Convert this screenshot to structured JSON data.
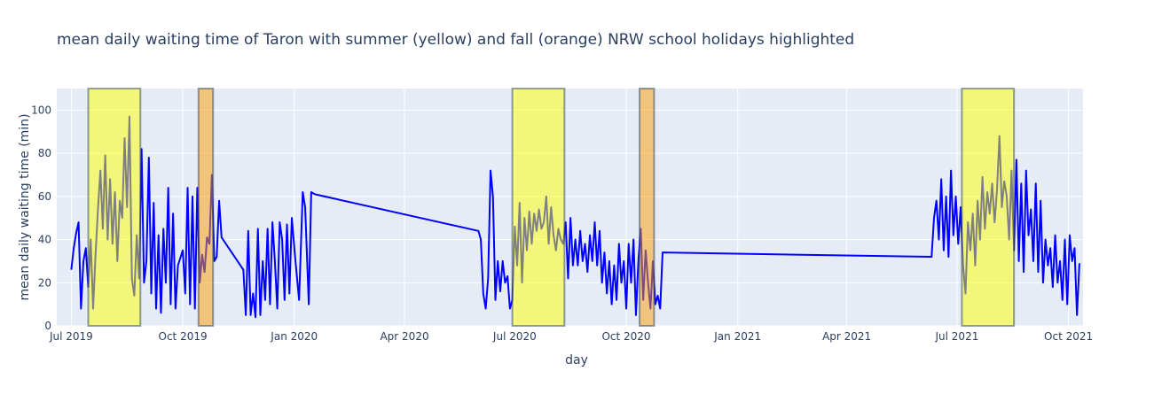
{
  "chart_data": {
    "type": "line",
    "title": "mean daily waiting time of Taron with summer (yellow) and fall (orange) NRW school holidays highlighted",
    "x_label": "day",
    "y_label": "mean daily waiting time (min)",
    "xlim": [
      "2019-06-19",
      "2021-10-13"
    ],
    "ylim": [
      0,
      110
    ],
    "xticks": [
      {
        "value": "2019-07-01",
        "label": "Jul 2019"
      },
      {
        "value": "2019-10-01",
        "label": "Oct 2019"
      },
      {
        "value": "2020-01-01",
        "label": "Jan 2020"
      },
      {
        "value": "2020-04-01",
        "label": "Apr 2020"
      },
      {
        "value": "2020-07-01",
        "label": "Jul 2020"
      },
      {
        "value": "2020-10-01",
        "label": "Oct 2020"
      },
      {
        "value": "2021-01-01",
        "label": "Jan 2021"
      },
      {
        "value": "2021-04-01",
        "label": "Apr 2021"
      },
      {
        "value": "2021-07-01",
        "label": "Jul 2021"
      },
      {
        "value": "2021-10-01",
        "label": "Oct 2021"
      }
    ],
    "yticks": [
      0,
      20,
      40,
      60,
      80,
      100
    ],
    "grid": true,
    "highlights": [
      {
        "x0": "2019-07-15",
        "x1": "2019-08-27",
        "color": "#ffff00"
      },
      {
        "x0": "2019-10-14",
        "x1": "2019-10-26",
        "color": "#ff9900"
      },
      {
        "x0": "2020-06-29",
        "x1": "2020-08-11",
        "color": "#ffff00"
      },
      {
        "x0": "2020-10-12",
        "x1": "2020-10-24",
        "color": "#ff9900"
      },
      {
        "x0": "2021-07-05",
        "x1": "2021-08-17",
        "color": "#ffff00"
      }
    ],
    "x": [
      "2019-07-01",
      "2019-07-03",
      "2019-07-05",
      "2019-07-07",
      "2019-07-09",
      "2019-07-11",
      "2019-07-13",
      "2019-07-15",
      "2019-07-17",
      "2019-07-19",
      "2019-07-21",
      "2019-07-23",
      "2019-07-25",
      "2019-07-27",
      "2019-07-29",
      "2019-07-31",
      "2019-08-02",
      "2019-08-04",
      "2019-08-06",
      "2019-08-08",
      "2019-08-10",
      "2019-08-12",
      "2019-08-14",
      "2019-08-16",
      "2019-08-18",
      "2019-08-20",
      "2019-08-22",
      "2019-08-24",
      "2019-08-26",
      "2019-08-28",
      "2019-08-30",
      "2019-09-01",
      "2019-09-03",
      "2019-09-05",
      "2019-09-07",
      "2019-09-09",
      "2019-09-11",
      "2019-09-13",
      "2019-09-15",
      "2019-09-17",
      "2019-09-19",
      "2019-09-21",
      "2019-09-23",
      "2019-09-25",
      "2019-09-27",
      "2019-10-01",
      "2019-10-03",
      "2019-10-05",
      "2019-10-07",
      "2019-10-09",
      "2019-10-11",
      "2019-10-13",
      "2019-10-15",
      "2019-10-17",
      "2019-10-19",
      "2019-10-21",
      "2019-10-23",
      "2019-10-25",
      "2019-10-27",
      "2019-10-29",
      "2019-10-31",
      "2019-11-02",
      "2019-11-20",
      "2019-11-22",
      "2019-11-24",
      "2019-11-26",
      "2019-11-28",
      "2019-11-30",
      "2019-12-02",
      "2019-12-04",
      "2019-12-06",
      "2019-12-08",
      "2019-12-10",
      "2019-12-12",
      "2019-12-14",
      "2019-12-16",
      "2019-12-18",
      "2019-12-20",
      "2019-12-22",
      "2019-12-24",
      "2019-12-26",
      "2019-12-28",
      "2019-12-30",
      "2020-01-02",
      "2020-01-05",
      "2020-01-08",
      "2020-01-10",
      "2020-01-13",
      "2020-01-15",
      "2020-01-18",
      "2020-06-01",
      "2020-06-03",
      "2020-06-05",
      "2020-06-07",
      "2020-06-09",
      "2020-06-11",
      "2020-06-13",
      "2020-06-15",
      "2020-06-17",
      "2020-06-19",
      "2020-06-21",
      "2020-06-23",
      "2020-06-25",
      "2020-06-27",
      "2020-06-29",
      "2020-07-01",
      "2020-07-03",
      "2020-07-05",
      "2020-07-07",
      "2020-07-09",
      "2020-07-11",
      "2020-07-13",
      "2020-07-15",
      "2020-07-17",
      "2020-07-19",
      "2020-07-21",
      "2020-07-23",
      "2020-07-25",
      "2020-07-27",
      "2020-07-29",
      "2020-07-31",
      "2020-08-02",
      "2020-08-04",
      "2020-08-06",
      "2020-08-08",
      "2020-08-10",
      "2020-08-12",
      "2020-08-14",
      "2020-08-16",
      "2020-08-18",
      "2020-08-20",
      "2020-08-22",
      "2020-08-24",
      "2020-08-26",
      "2020-08-28",
      "2020-08-30",
      "2020-09-01",
      "2020-09-03",
      "2020-09-05",
      "2020-09-07",
      "2020-09-09",
      "2020-09-11",
      "2020-09-13",
      "2020-09-15",
      "2020-09-17",
      "2020-09-19",
      "2020-09-21",
      "2020-09-23",
      "2020-09-25",
      "2020-09-27",
      "2020-09-29",
      "2020-10-01",
      "2020-10-03",
      "2020-10-05",
      "2020-10-07",
      "2020-10-09",
      "2020-10-11",
      "2020-10-13",
      "2020-10-15",
      "2020-10-17",
      "2020-10-19",
      "2020-10-21",
      "2020-10-23",
      "2020-10-25",
      "2020-10-27",
      "2020-10-29",
      "2020-10-31",
      "2021-06-10",
      "2021-06-12",
      "2021-06-14",
      "2021-06-16",
      "2021-06-18",
      "2021-06-20",
      "2021-06-22",
      "2021-06-24",
      "2021-06-26",
      "2021-06-28",
      "2021-06-30",
      "2021-07-02",
      "2021-07-04",
      "2021-07-06",
      "2021-07-08",
      "2021-07-10",
      "2021-07-12",
      "2021-07-14",
      "2021-07-16",
      "2021-07-18",
      "2021-07-20",
      "2021-07-22",
      "2021-07-24",
      "2021-07-26",
      "2021-07-28",
      "2021-07-30",
      "2021-08-01",
      "2021-08-03",
      "2021-08-05",
      "2021-08-07",
      "2021-08-09",
      "2021-08-11",
      "2021-08-13",
      "2021-08-15",
      "2021-08-17",
      "2021-08-19",
      "2021-08-21",
      "2021-08-23",
      "2021-08-25",
      "2021-08-27",
      "2021-08-29",
      "2021-08-31",
      "2021-09-02",
      "2021-09-04",
      "2021-09-06",
      "2021-09-08",
      "2021-09-10",
      "2021-09-12",
      "2021-09-14",
      "2021-09-16",
      "2021-09-18",
      "2021-09-20",
      "2021-09-22",
      "2021-09-24",
      "2021-09-26",
      "2021-09-28",
      "2021-09-30",
      "2021-10-02",
      "2021-10-04",
      "2021-10-06",
      "2021-10-08",
      "2021-10-10"
    ],
    "series": [
      {
        "color": "#0000ff",
        "values": [
          26,
          36,
          43,
          48,
          8,
          30,
          36,
          18,
          40,
          8,
          33,
          54,
          72,
          45,
          79,
          40,
          68,
          38,
          62,
          30,
          58,
          50,
          87,
          55,
          97,
          22,
          14,
          42,
          22,
          82,
          20,
          30,
          78,
          15,
          57,
          8,
          42,
          6,
          45,
          20,
          64,
          10,
          52,
          8,
          28,
          35,
          15,
          64,
          10,
          60,
          8,
          64,
          20,
          33,
          25,
          41,
          38,
          70,
          30,
          32,
          58,
          41,
          26,
          5,
          44,
          5,
          15,
          4,
          45,
          5,
          30,
          12,
          45,
          10,
          48,
          30,
          8,
          48,
          40,
          12,
          47,
          15,
          50,
          30,
          12,
          62,
          55,
          10,
          62,
          61,
          44,
          40,
          15,
          8,
          22,
          72,
          60,
          12,
          30,
          16,
          30,
          20,
          23,
          8,
          12,
          46,
          28,
          57,
          20,
          50,
          35,
          53,
          38,
          52,
          44,
          54,
          45,
          48,
          60,
          38,
          55,
          42,
          35,
          45,
          40,
          38,
          48,
          22,
          50,
          28,
          40,
          28,
          44,
          30,
          38,
          25,
          42,
          30,
          48,
          28,
          44,
          20,
          34,
          15,
          30,
          10,
          28,
          12,
          38,
          20,
          30,
          8,
          38,
          20,
          40,
          5,
          30,
          45,
          12,
          35,
          20,
          8,
          30,
          10,
          14,
          8,
          34,
          32,
          50,
          58,
          40,
          68,
          35,
          60,
          32,
          72,
          42,
          60,
          38,
          55,
          28,
          15,
          48,
          35,
          52,
          28,
          58,
          40,
          69,
          45,
          62,
          52,
          66,
          48,
          63,
          88,
          55,
          67,
          60,
          40,
          72,
          35,
          77,
          30,
          66,
          25,
          72,
          42,
          54,
          30,
          66,
          25,
          58,
          20,
          40,
          28,
          36,
          18,
          42,
          20,
          30,
          12,
          40,
          10,
          42,
          30,
          36,
          5,
          29
        ]
      }
    ]
  }
}
